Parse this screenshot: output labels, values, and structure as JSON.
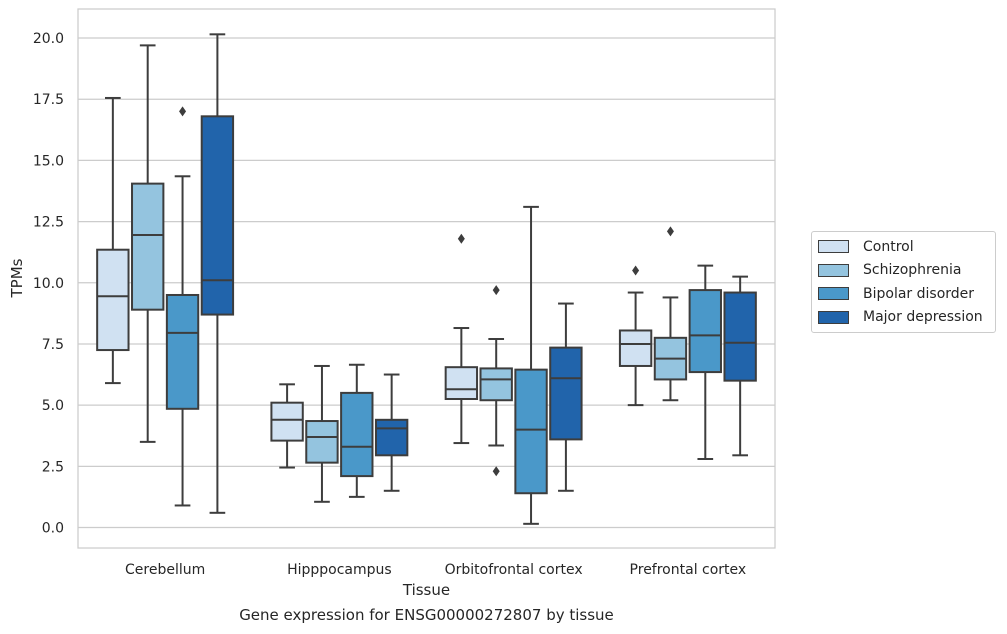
{
  "chart_data": {
    "type": "box",
    "xlabel": "Tissue",
    "ylabel": "TPMs",
    "ylim": [
      -0.8,
      21.2
    ],
    "yticks": [
      "0.0",
      "2.5",
      "5.0",
      "7.5",
      "10.0",
      "12.5",
      "15.0",
      "17.5",
      "20.0"
    ],
    "ytick_values": [
      0,
      2.5,
      5,
      7.5,
      10,
      12.5,
      15,
      17.5,
      20
    ],
    "grid": "horizontal",
    "legend_position": "right-outside",
    "categories": [
      "Cerebellum",
      "Hipppocampus",
      "Orbitofrontal cortex",
      "Prefrontal cortex"
    ],
    "series": [
      {
        "name": "Control",
        "color": "#d0e1f2",
        "boxes": [
          {
            "min": 5.9,
            "q1": 7.25,
            "median": 9.45,
            "q3": 11.35,
            "max": 17.55,
            "outliers": []
          },
          {
            "min": 2.45,
            "q1": 3.55,
            "median": 4.4,
            "q3": 5.1,
            "max": 5.85,
            "outliers": []
          },
          {
            "min": 3.45,
            "q1": 5.25,
            "median": 5.65,
            "q3": 6.55,
            "max": 8.15,
            "outliers": [
              11.8
            ]
          },
          {
            "min": 5.0,
            "q1": 6.6,
            "median": 7.5,
            "q3": 8.05,
            "max": 9.6,
            "outliers": [
              10.5
            ]
          }
        ]
      },
      {
        "name": "Schizophrenia",
        "color": "#94c4df",
        "boxes": [
          {
            "min": 3.5,
            "q1": 8.9,
            "median": 11.95,
            "q3": 14.05,
            "max": 19.7,
            "outliers": []
          },
          {
            "min": 1.05,
            "q1": 2.65,
            "median": 3.7,
            "q3": 4.35,
            "max": 6.6,
            "outliers": []
          },
          {
            "min": 3.35,
            "q1": 5.2,
            "median": 6.05,
            "q3": 6.5,
            "max": 7.7,
            "outliers": [
              2.3,
              9.7
            ]
          },
          {
            "min": 5.2,
            "q1": 6.05,
            "median": 6.9,
            "q3": 7.75,
            "max": 9.4,
            "outliers": [
              12.1
            ]
          }
        ]
      },
      {
        "name": "Bipolar disorder",
        "color": "#4a98c9",
        "boxes": [
          {
            "min": 0.9,
            "q1": 4.85,
            "median": 7.95,
            "q3": 9.5,
            "max": 14.35,
            "outliers": [
              17.0
            ]
          },
          {
            "min": 1.25,
            "q1": 2.1,
            "median": 3.3,
            "q3": 5.5,
            "max": 6.65,
            "outliers": []
          },
          {
            "min": 0.15,
            "q1": 1.4,
            "median": 4.0,
            "q3": 6.45,
            "max": 13.1,
            "outliers": []
          },
          {
            "min": 2.8,
            "q1": 6.35,
            "median": 7.85,
            "q3": 9.7,
            "max": 10.7,
            "outliers": []
          }
        ]
      },
      {
        "name": "Major depression",
        "color": "#2164ab",
        "boxes": [
          {
            "min": 0.6,
            "q1": 8.7,
            "median": 10.1,
            "q3": 16.8,
            "max": 20.15,
            "outliers": []
          },
          {
            "min": 1.5,
            "q1": 2.95,
            "median": 4.05,
            "q3": 4.4,
            "max": 6.25,
            "outliers": []
          },
          {
            "min": 1.5,
            "q1": 3.6,
            "median": 6.1,
            "q3": 7.35,
            "max": 9.15,
            "outliers": []
          },
          {
            "min": 2.95,
            "q1": 6.0,
            "median": 7.55,
            "q3": 9.6,
            "max": 10.25,
            "outliers": []
          }
        ]
      }
    ]
  },
  "caption": "Gene expression for ENSG00000272807 by tissue"
}
